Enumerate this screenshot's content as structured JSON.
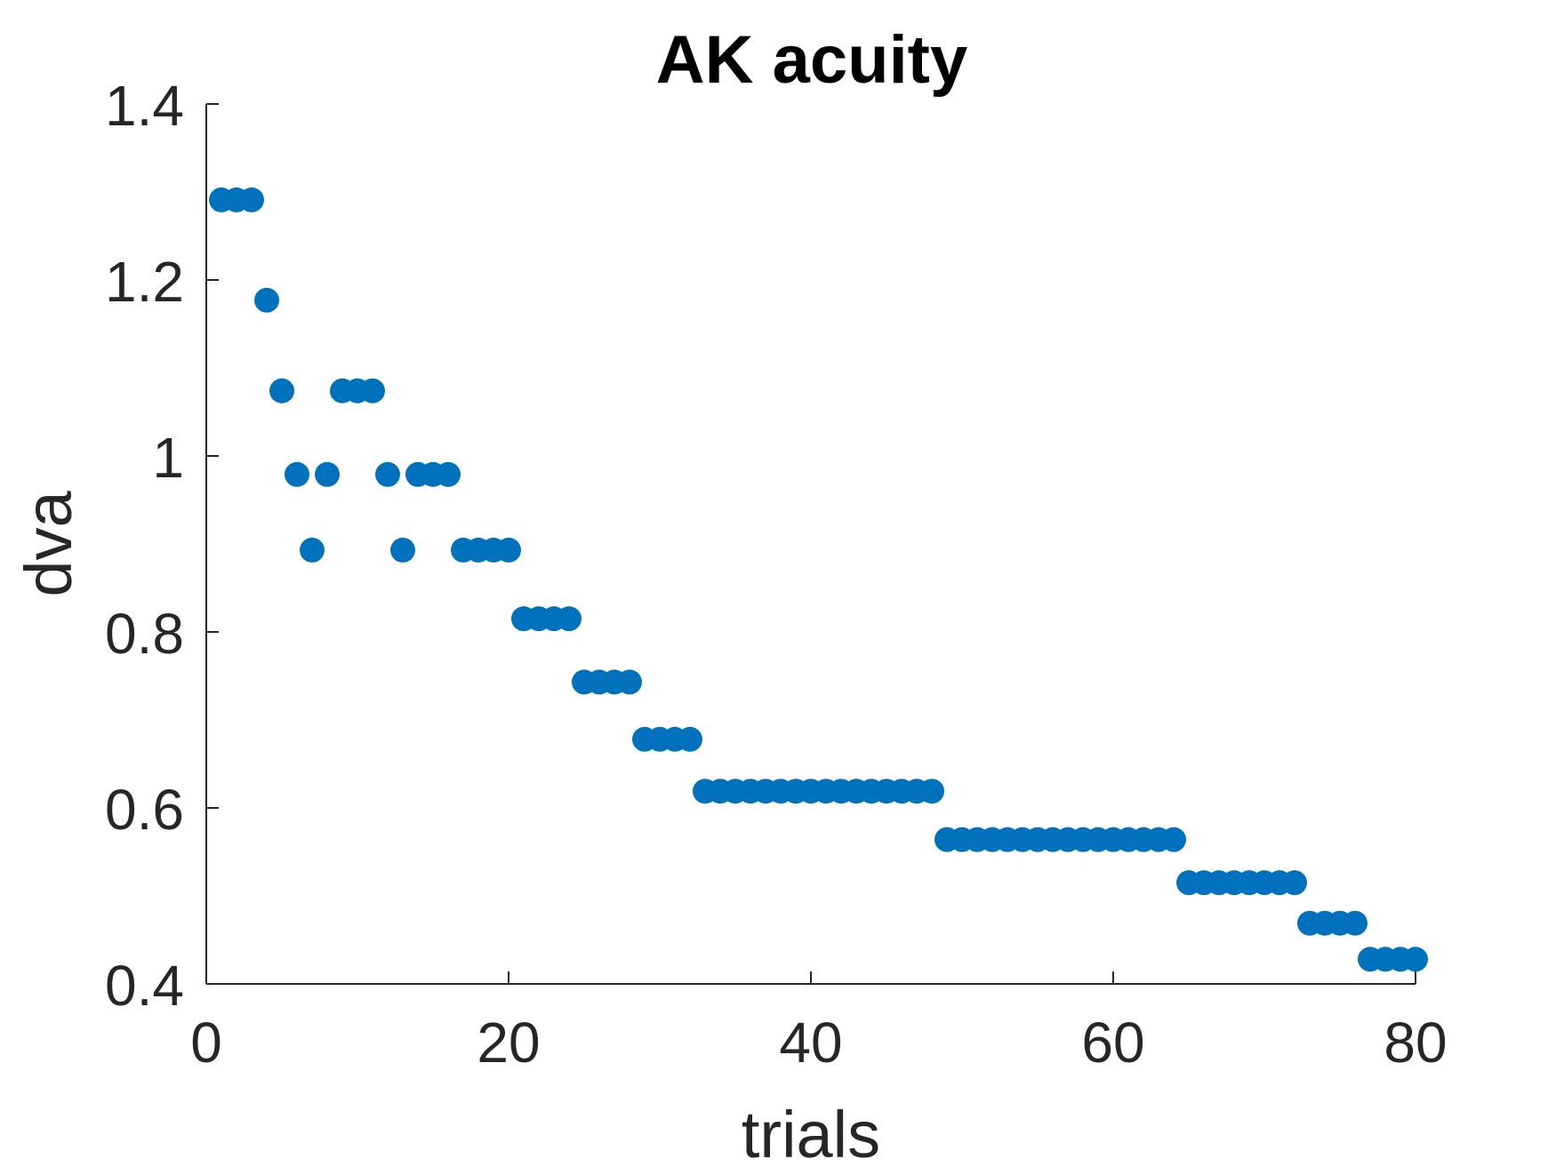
{
  "chart_data": {
    "type": "scatter",
    "title": "AK acuity",
    "xlabel": "trials",
    "ylabel": "dva",
    "xlim": [
      0,
      80
    ],
    "ylim": [
      0.4,
      1.4
    ],
    "xticks": [
      0,
      20,
      40,
      60,
      80
    ],
    "xtick_labels": [
      "0",
      "20",
      "40",
      "60",
      "80"
    ],
    "yticks": [
      0.4,
      0.6,
      0.8,
      1.0,
      1.2,
      1.4
    ],
    "ytick_labels": [
      "0.4",
      "0.6",
      "0.8",
      "1",
      "1.2",
      "1.4"
    ],
    "grid": false,
    "marker_color": "#0072BD",
    "axis_color": "#262626",
    "x": [
      1,
      2,
      3,
      4,
      5,
      6,
      7,
      8,
      9,
      10,
      11,
      12,
      13,
      14,
      15,
      16,
      17,
      18,
      19,
      20,
      21,
      22,
      23,
      24,
      25,
      26,
      27,
      28,
      29,
      30,
      31,
      32,
      33,
      34,
      35,
      36,
      37,
      38,
      39,
      40,
      41,
      42,
      43,
      44,
      45,
      46,
      47,
      48,
      49,
      50,
      51,
      52,
      53,
      54,
      55,
      56,
      57,
      58,
      59,
      60,
      61,
      62,
      63,
      64,
      65,
      66,
      67,
      68,
      69,
      70,
      71,
      72,
      73,
      74,
      75,
      76,
      77,
      78,
      79,
      80
    ],
    "y": [
      1.291,
      1.291,
      1.291,
      1.177,
      1.074,
      0.979,
      0.893,
      0.979,
      1.074,
      1.074,
      1.074,
      0.979,
      0.893,
      0.979,
      0.979,
      0.979,
      0.893,
      0.893,
      0.893,
      0.893,
      0.815,
      0.815,
      0.815,
      0.815,
      0.743,
      0.743,
      0.743,
      0.743,
      0.678,
      0.678,
      0.678,
      0.678,
      0.619,
      0.619,
      0.619,
      0.619,
      0.619,
      0.619,
      0.619,
      0.619,
      0.619,
      0.619,
      0.619,
      0.619,
      0.619,
      0.619,
      0.619,
      0.619,
      0.564,
      0.564,
      0.564,
      0.564,
      0.564,
      0.564,
      0.564,
      0.564,
      0.564,
      0.564,
      0.564,
      0.564,
      0.564,
      0.564,
      0.564,
      0.564,
      0.515,
      0.515,
      0.515,
      0.515,
      0.515,
      0.515,
      0.515,
      0.515,
      0.469,
      0.469,
      0.469,
      0.469,
      0.428,
      0.428,
      0.428,
      0.428
    ]
  }
}
